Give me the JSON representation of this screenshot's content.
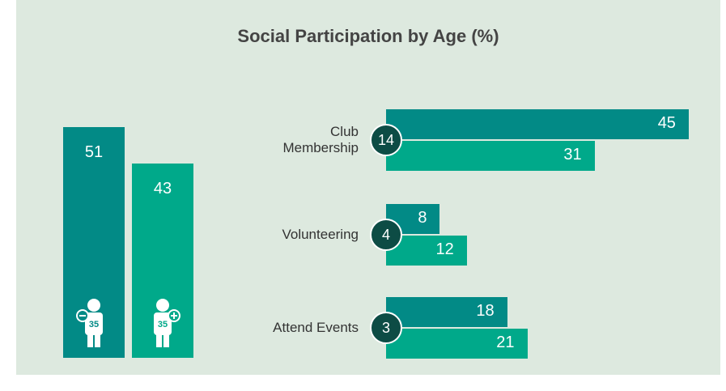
{
  "chart_data": {
    "type": "bar",
    "title": "Social Participation by Age (%)",
    "age_groups": {
      "icon_labels": [
        "35",
        "35"
      ],
      "values": [
        51,
        43
      ],
      "colors": [
        "#028a86",
        "#00a98a"
      ]
    },
    "categories": [
      "Club Membership",
      "Volunteering",
      "Attend Events"
    ],
    "series": [
      {
        "color": "#028a86",
        "values": [
          45,
          8,
          18
        ]
      },
      {
        "color": "#00a98a",
        "values": [
          31,
          12,
          21
        ]
      }
    ],
    "differences": [
      14,
      4,
      3
    ],
    "difference_color": "#0d4c45"
  }
}
